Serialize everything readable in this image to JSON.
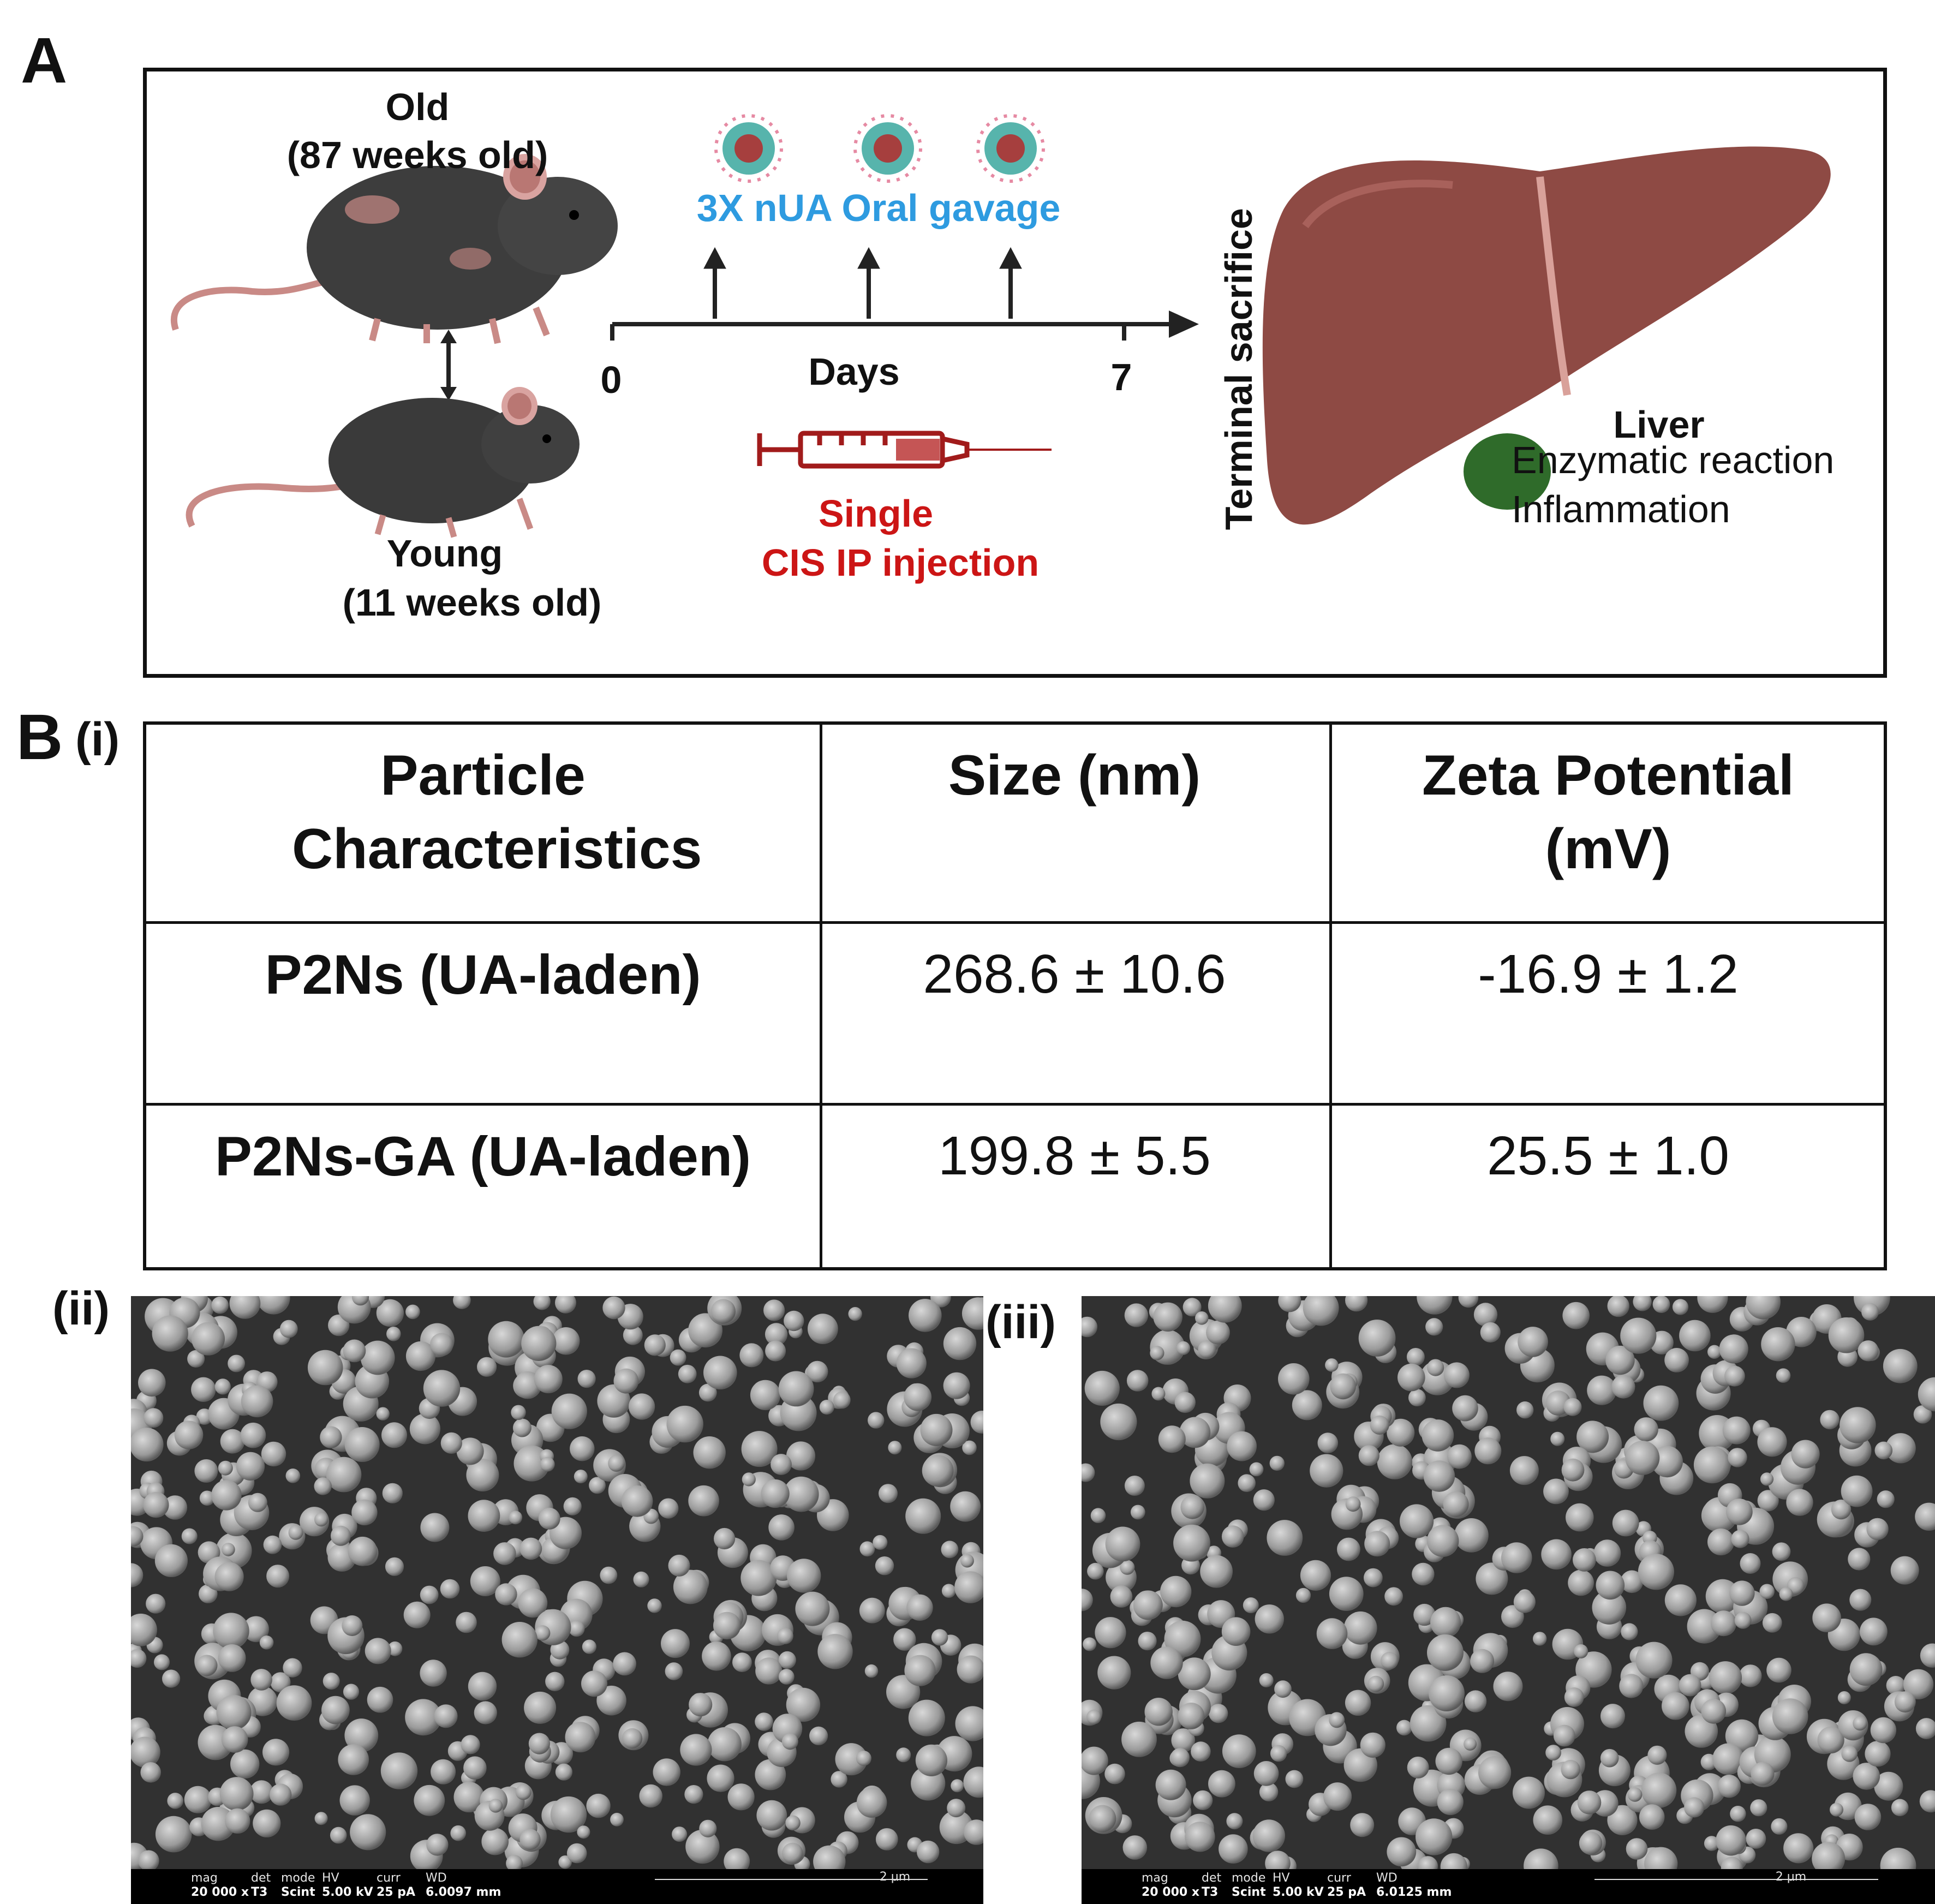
{
  "panel_a": {
    "letter": "A",
    "old_label": "Old",
    "old_age": "(87 weeks old)",
    "young_label": "Young",
    "young_age": "(11 weeks old)",
    "treatment_label": "3X nUA Oral gavage",
    "timeline_start": "0",
    "timeline_end": "7",
    "timeline_axis": "Days",
    "injection_line1": "Single",
    "injection_line2": "CIS IP injection",
    "endpoint_label": "Terminal sacrifice",
    "organ_label": "Liver",
    "readout_1": "Enzymatic reaction",
    "readout_2": "Inflammation"
  },
  "panel_b": {
    "letter": "B",
    "sub_i": "(i)",
    "sub_ii": "(ii)",
    "sub_iii": "(iii)",
    "table": {
      "headers": [
        "Particle Characteristics",
        "Size (nm)",
        "Zeta Potential (mV)"
      ],
      "rows": [
        {
          "name": "P2Ns (UA-laden)",
          "size": "268.6 ± 10.6",
          "zeta": "-16.9 ± 1.2"
        },
        {
          "name": "P2Ns-GA (UA-laden)",
          "size": "199.8 ± 5.5",
          "zeta": "25.5 ± 1.0"
        }
      ]
    },
    "sem_left": {
      "mag_label": "mag",
      "mag": "20 000 x",
      "det_label": "det",
      "det": "T3",
      "mode_label": "mode",
      "mode": "Scint",
      "hv_label": "HV",
      "hv": "5.00 kV",
      "curr_label": "curr",
      "curr": "25 pA",
      "wd_label": "WD",
      "wd": "6.0097 mm",
      "scale": "2 µm"
    },
    "sem_right": {
      "mag_label": "mag",
      "mag": "20 000 x",
      "det_label": "det",
      "det": "T3",
      "mode_label": "mode",
      "mode": "Scint",
      "hv_label": "HV",
      "hv": "5.00 kV",
      "curr_label": "curr",
      "curr": "25 pA",
      "wd_label": "WD",
      "wd": "6.0125 mm",
      "scale": "2 µm"
    }
  },
  "colors": {
    "treatment": "#2e9be0",
    "injection": "#cc1515",
    "mouse": "#3a3a3a",
    "liver": "#8e4a44",
    "gallbladder": "#2f6b2a",
    "sem_background": "#313131"
  }
}
